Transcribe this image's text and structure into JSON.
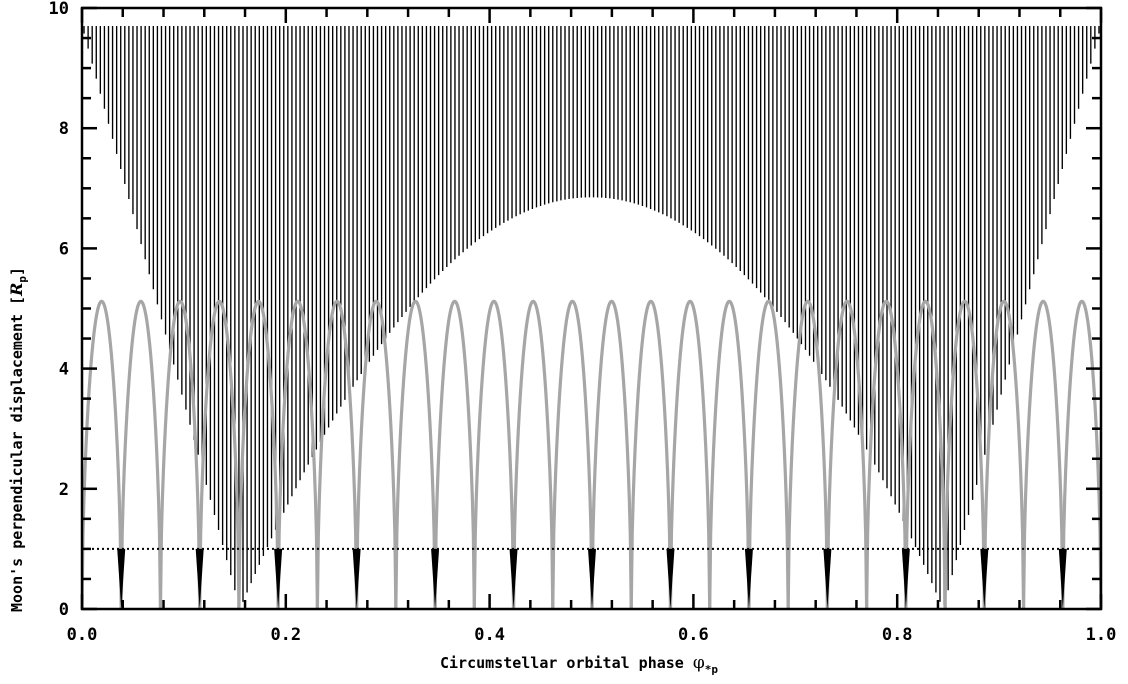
{
  "chart_data": {
    "type": "line",
    "title": "",
    "xlabel": {
      "main": "Circumstellar orbital phase ",
      "symbol": "φ",
      "subscript": "*p"
    },
    "ylabel": {
      "main": "Moon's perpendicular displacement [",
      "symbol": "R",
      "subscript": "p",
      "close": "]"
    },
    "xlim": [
      0.0,
      1.0
    ],
    "ylim": [
      0,
      10
    ],
    "xticks": [
      "0.0",
      "0.2",
      "0.4",
      "0.6",
      "0.8",
      "1.0"
    ],
    "yticks": [
      "0",
      "2",
      "4",
      "6",
      "8",
      "10"
    ],
    "grid": false,
    "series": [
      {
        "style": "black vertical oscillation lines",
        "color": "#000000",
        "upper_level": 9.7,
        "envelope_center_phases": [
          0.155,
          0.845
        ],
        "envelope_max_at_center_phase": 0.5,
        "envelope_max_value": 6.85,
        "envelope_min_value": 0.0,
        "oscillation_count": 250
      },
      {
        "style": "grey arcs",
        "color": "#a6a6a6",
        "peak_value": 5.12,
        "zero_phases": [
          0.0,
          0.0385,
          0.077,
          0.1155,
          0.154,
          0.1925,
          0.231,
          0.2695,
          0.308,
          0.3465,
          0.385,
          0.4235,
          0.462,
          0.5005,
          0.539,
          0.5775,
          0.616,
          0.6545,
          0.693,
          0.7315,
          0.77,
          0.8085,
          0.847,
          0.8855,
          0.924,
          0.9625,
          1.0
        ]
      },
      {
        "style": "black spikes below threshold",
        "color": "#000000",
        "spike_phases": [
          0.0385,
          0.1155,
          0.1925,
          0.2695,
          0.3465,
          0.4235,
          0.5005,
          0.5775,
          0.6545,
          0.7315,
          0.8085,
          0.8855,
          0.9625
        ]
      },
      {
        "style": "dotted threshold line",
        "color": "#000000",
        "value": 1.0
      }
    ]
  }
}
